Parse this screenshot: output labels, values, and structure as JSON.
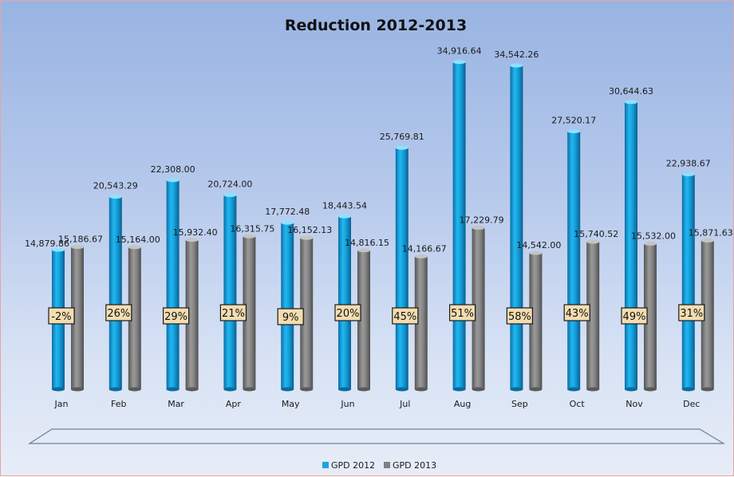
{
  "chart_data": {
    "type": "bar",
    "title": "Reduction 2012-2013",
    "categories": [
      "Jan",
      "Feb",
      "Mar",
      "Apr",
      "May",
      "Jun",
      "Jul",
      "Aug",
      "Sep",
      "Oct",
      "Nov",
      "Dec"
    ],
    "series": [
      {
        "name": "GPD 2012",
        "color": "#19a6e0",
        "values": [
          14879.86,
          20543.29,
          22308.0,
          20724.0,
          17772.48,
          18443.54,
          25769.81,
          34916.64,
          34542.26,
          27520.17,
          30644.63,
          22938.67
        ],
        "labels": [
          "14,879.86",
          "20,543.29",
          "22,308.00",
          "20,724.00",
          "17,772.48",
          "18,443.54",
          "25,769.81",
          "34,916.64",
          "34,542.26",
          "27,520.17",
          "30,644.63",
          "22,938.67"
        ]
      },
      {
        "name": "GPD 2013",
        "color": "#808080",
        "values": [
          15186.67,
          15164.0,
          15932.4,
          16315.75,
          16152.13,
          14816.15,
          14166.67,
          17229.79,
          14542.0,
          15740.52,
          15532.0,
          15871.63
        ],
        "labels": [
          "15,186.67",
          "15,164.00",
          "15,932.40",
          "16,315.75",
          "16,152.13",
          "14,816.15",
          "14,166.67",
          "17,229.79",
          "14,542.00",
          "15,740.52",
          "15,532.00",
          "15,871.63"
        ]
      }
    ],
    "reduction_labels": [
      "-2%",
      "26%",
      "29%",
      "21%",
      "9%",
      "20%",
      "45%",
      "51%",
      "58%",
      "43%",
      "49%",
      "31%"
    ],
    "ylim": [
      0,
      36000
    ],
    "grid": false,
    "legend_position": "bottom"
  }
}
